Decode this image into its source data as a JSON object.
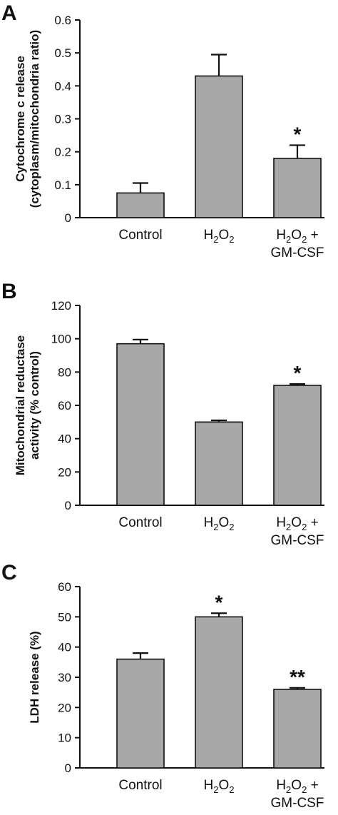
{
  "chart_data": [
    {
      "type": "bar",
      "panel_label": "A",
      "ylabel_lines": [
        "Cytochrome c release",
        "(cytoplasm/mitochondria ratio)"
      ],
      "categories": [
        {
          "parts": [
            {
              "t": "Control"
            }
          ]
        },
        {
          "parts": [
            {
              "t": "H"
            },
            {
              "t": "2",
              "sub": true
            },
            {
              "t": "O"
            },
            {
              "t": "2",
              "sub": true
            }
          ]
        },
        {
          "parts": [
            {
              "t": "H"
            },
            {
              "t": "2",
              "sub": true
            },
            {
              "t": "O"
            },
            {
              "t": "2",
              "sub": true
            },
            {
              "t": " +"
            }
          ],
          "line2": "GM-CSF"
        }
      ],
      "values": [
        0.075,
        0.43,
        0.18
      ],
      "errors": [
        0.03,
        0.065,
        0.04
      ],
      "annotations": [
        "",
        "",
        "*"
      ],
      "yticks": [
        "0",
        "0.1",
        "0.2",
        "0.3",
        "0.4",
        "0.5",
        "0.6"
      ],
      "ylim": [
        0,
        0.6
      ],
      "bar_color": "#a8a8a8",
      "grid": false,
      "legend": "none"
    },
    {
      "type": "bar",
      "panel_label": "B",
      "ylabel_lines": [
        "Mitochondrial reductase",
        "activity (% control)"
      ],
      "categories": [
        {
          "parts": [
            {
              "t": "Control"
            }
          ]
        },
        {
          "parts": [
            {
              "t": "H"
            },
            {
              "t": "2",
              "sub": true
            },
            {
              "t": "O"
            },
            {
              "t": "2",
              "sub": true
            }
          ]
        },
        {
          "parts": [
            {
              "t": "H"
            },
            {
              "t": "2",
              "sub": true
            },
            {
              "t": "O"
            },
            {
              "t": "2",
              "sub": true
            },
            {
              "t": " +"
            }
          ],
          "line2": "GM-CSF"
        }
      ],
      "values": [
        97,
        50,
        72
      ],
      "errors": [
        2.5,
        1,
        0.8
      ],
      "annotations": [
        "",
        "",
        "*"
      ],
      "yticks": [
        "0",
        "20",
        "40",
        "60",
        "80",
        "100",
        "120"
      ],
      "ylim": [
        0,
        120
      ],
      "bar_color": "#a8a8a8",
      "grid": false,
      "legend": "none"
    },
    {
      "type": "bar",
      "panel_label": "C",
      "ylabel_lines": [
        "LDH release (%)"
      ],
      "categories": [
        {
          "parts": [
            {
              "t": "Control"
            }
          ]
        },
        {
          "parts": [
            {
              "t": "H"
            },
            {
              "t": "2",
              "sub": true
            },
            {
              "t": "O"
            },
            {
              "t": "2",
              "sub": true
            }
          ]
        },
        {
          "parts": [
            {
              "t": "H"
            },
            {
              "t": "2",
              "sub": true
            },
            {
              "t": "O"
            },
            {
              "t": "2",
              "sub": true
            },
            {
              "t": " +"
            }
          ],
          "line2": "GM-CSF"
        }
      ],
      "values": [
        36,
        50,
        26
      ],
      "errors": [
        2,
        1.2,
        0.5
      ],
      "annotations": [
        "",
        "*",
        "**"
      ],
      "yticks": [
        "0",
        "10",
        "20",
        "30",
        "40",
        "50",
        "60"
      ],
      "ylim": [
        0,
        60
      ],
      "bar_color": "#a8a8a8",
      "grid": false,
      "legend": "none"
    }
  ]
}
